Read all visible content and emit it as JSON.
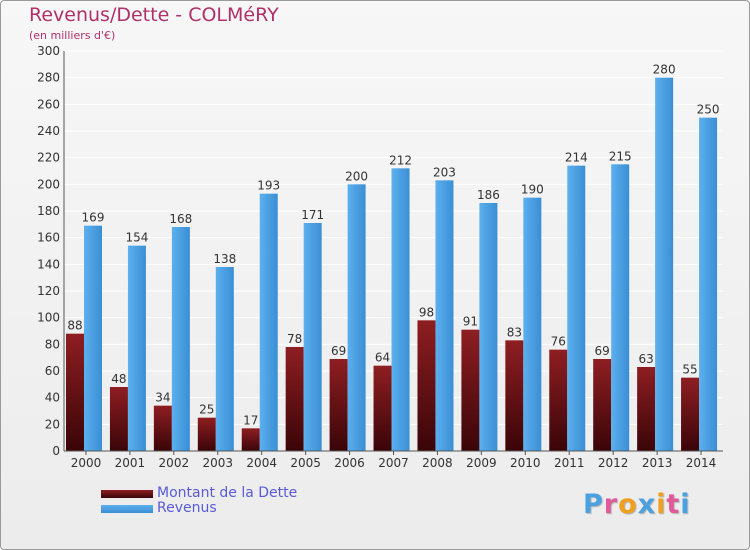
{
  "chart_data": {
    "type": "bar",
    "title": "Revenus/Dette - COLMéRY",
    "subtitle": "(en milliers d'€)",
    "categories": [
      "2000",
      "2001",
      "2002",
      "2003",
      "2004",
      "2005",
      "2006",
      "2007",
      "2008",
      "2009",
      "2010",
      "2011",
      "2012",
      "2013",
      "2014"
    ],
    "series": [
      {
        "name": "Montant de la Dette",
        "color": "#7a1418",
        "values": [
          88,
          48,
          34,
          25,
          17,
          78,
          69,
          64,
          98,
          91,
          83,
          76,
          69,
          63,
          55
        ]
      },
      {
        "name": "Revenus",
        "color": "#4aa0e0",
        "values": [
          169,
          154,
          168,
          138,
          193,
          171,
          200,
          212,
          203,
          186,
          190,
          214,
          215,
          280,
          250
        ]
      }
    ],
    "ylim": [
      0,
      300
    ],
    "ytick_step": 20,
    "grid": true,
    "legend_position": "bottom-left"
  },
  "logo": {
    "letters": [
      "P",
      "r",
      "o",
      "x",
      "i",
      "t",
      "i"
    ],
    "colors": [
      "#4aa0e0",
      "#e05a9a",
      "#f0a020",
      "#4aa0e0",
      "#f0a020",
      "#e05a9a",
      "#4aa0e0"
    ]
  }
}
